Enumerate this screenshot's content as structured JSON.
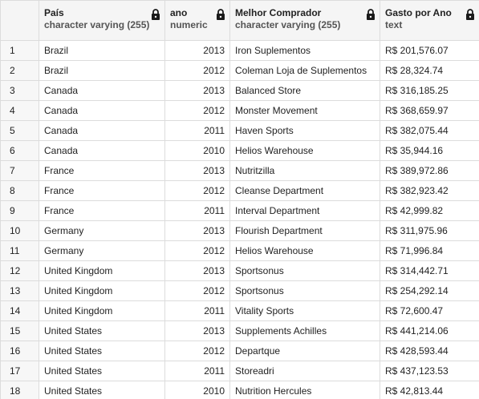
{
  "columns": [
    {
      "name": "País",
      "type": "character varying (255)",
      "locked": true
    },
    {
      "name": "ano",
      "type": "numeric",
      "locked": true
    },
    {
      "name": "Melhor Comprador",
      "type": "character varying (255)",
      "locked": true
    },
    {
      "name": "Gasto por Ano",
      "type": "text",
      "locked": true
    }
  ],
  "rows": [
    {
      "n": "1",
      "pais": "Brazil",
      "ano": "2013",
      "comprador": "Iron Suplementos",
      "gasto": "R$ 201,576.07"
    },
    {
      "n": "2",
      "pais": "Brazil",
      "ano": "2012",
      "comprador": "Coleman Loja de Suplementos",
      "gasto": "R$ 28,324.74"
    },
    {
      "n": "3",
      "pais": "Canada",
      "ano": "2013",
      "comprador": "Balanced Store",
      "gasto": "R$ 316,185.25"
    },
    {
      "n": "4",
      "pais": "Canada",
      "ano": "2012",
      "comprador": "Monster Movement",
      "gasto": "R$ 368,659.97"
    },
    {
      "n": "5",
      "pais": "Canada",
      "ano": "2011",
      "comprador": "Haven Sports",
      "gasto": "R$ 382,075.44"
    },
    {
      "n": "6",
      "pais": "Canada",
      "ano": "2010",
      "comprador": "Helios Warehouse",
      "gasto": "R$ 35,944.16"
    },
    {
      "n": "7",
      "pais": "France",
      "ano": "2013",
      "comprador": "Nutritzilla",
      "gasto": "R$ 389,972.86"
    },
    {
      "n": "8",
      "pais": "France",
      "ano": "2012",
      "comprador": "Cleanse Department",
      "gasto": "R$ 382,923.42"
    },
    {
      "n": "9",
      "pais": "France",
      "ano": "2011",
      "comprador": "Interval Department",
      "gasto": "R$ 42,999.82"
    },
    {
      "n": "10",
      "pais": "Germany",
      "ano": "2013",
      "comprador": "Flourish Department",
      "gasto": "R$ 311,975.96"
    },
    {
      "n": "11",
      "pais": "Germany",
      "ano": "2012",
      "comprador": "Helios Warehouse",
      "gasto": "R$ 71,996.84"
    },
    {
      "n": "12",
      "pais": "United Kingdom",
      "ano": "2013",
      "comprador": "Sportsonus",
      "gasto": "R$ 314,442.71"
    },
    {
      "n": "13",
      "pais": "United Kingdom",
      "ano": "2012",
      "comprador": "Sportsonus",
      "gasto": "R$ 254,292.14"
    },
    {
      "n": "14",
      "pais": "United Kingdom",
      "ano": "2011",
      "comprador": "Vitality Sports",
      "gasto": "R$ 72,600.47"
    },
    {
      "n": "15",
      "pais": "United States",
      "ano": "2013",
      "comprador": "Supplements Achilles",
      "gasto": "R$ 441,214.06"
    },
    {
      "n": "16",
      "pais": "United States",
      "ano": "2012",
      "comprador": "Departque",
      "gasto": "R$ 428,593.44"
    },
    {
      "n": "17",
      "pais": "United States",
      "ano": "2011",
      "comprador": "Storeadri",
      "gasto": "R$ 437,123.53"
    },
    {
      "n": "18",
      "pais": "United States",
      "ano": "2010",
      "comprador": "Nutrition Hercules",
      "gasto": "R$ 42,813.44"
    }
  ],
  "icons": {
    "lock": "lock-icon"
  }
}
